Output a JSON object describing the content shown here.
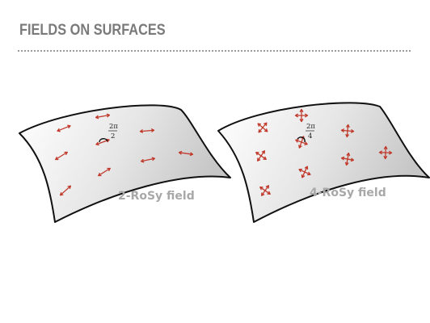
{
  "title": "FIELDS ON SURFACES",
  "colors": {
    "arrow": "#c0392b",
    "caption": "#a8a8a8",
    "title": "#7a7a7a",
    "surface_light": "#ffffff",
    "surface_dark": "#cfcfcf"
  },
  "panels": [
    {
      "caption": "2-RoSy field",
      "angle_num": "2π",
      "angle_den": "2",
      "symmetry": 2
    },
    {
      "caption": "4-RoSy field",
      "angle_num": "2π",
      "angle_den": "4",
      "symmetry": 4
    }
  ]
}
